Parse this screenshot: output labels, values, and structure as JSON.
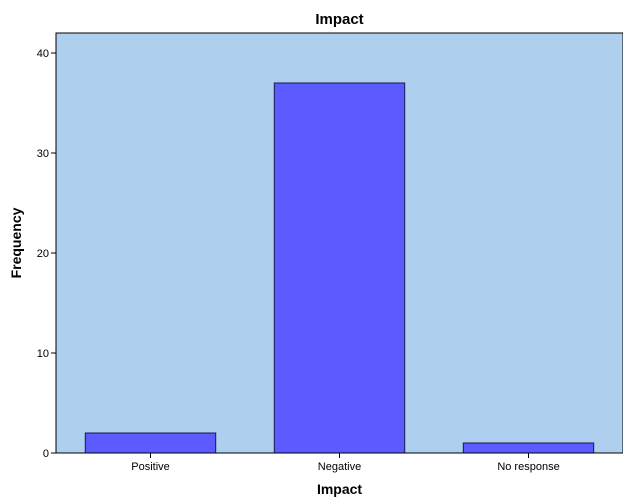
{
  "chart_data": {
    "type": "bar",
    "title": "Impact",
    "xlabel": "Impact",
    "ylabel": "Frequency",
    "categories": [
      "Positive",
      "Negative",
      "No response"
    ],
    "values": [
      2,
      37,
      1
    ],
    "ylim": [
      0,
      42
    ],
    "yticks": [
      0,
      10,
      20,
      30,
      40
    ],
    "grid": false,
    "colors": {
      "plot_background": "#aecfee",
      "bar_fill": "#5b5bff",
      "bar_stroke": "#1a1a4d",
      "axis": "#000000"
    }
  }
}
